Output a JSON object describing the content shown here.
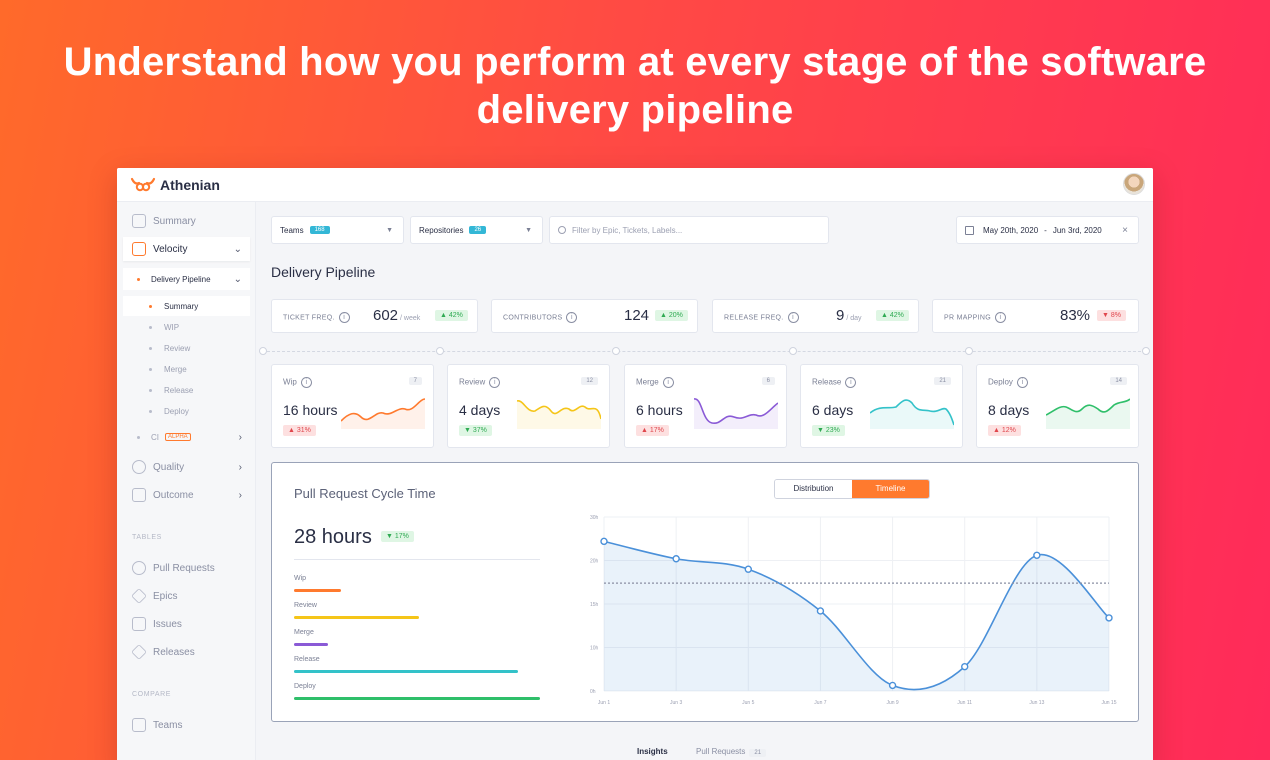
{
  "headline": "Understand how you perform at every stage of the software delivery pipeline",
  "app": {
    "name": "Athenian"
  },
  "sidebar": {
    "summary": "Summary",
    "velocity": "Velocity",
    "delivery_pipeline": "Delivery Pipeline",
    "pipeline_items": [
      "Summary",
      "WIP",
      "Review",
      "Merge",
      "Release",
      "Deploy"
    ],
    "ci": "CI",
    "ci_badge": "ALPHA",
    "quality": "Quality",
    "outcome": "Outcome",
    "tables_heading": "TABLES",
    "tables": [
      "Pull Requests",
      "Epics",
      "Issues",
      "Releases"
    ],
    "compare_heading": "COMPARE",
    "compare": [
      "Teams"
    ]
  },
  "filters": {
    "teams_label": "Teams",
    "teams_count": "168",
    "repos_label": "Repositories",
    "repos_count": "26",
    "search_placeholder": "Filter by Epic, Tickets, Labels...",
    "date_from": "May 20th, 2020",
    "date_sep": "-",
    "date_to": "Jun 3rd, 2020",
    "date_clear": "×"
  },
  "page_title": "Delivery Pipeline",
  "kpis": [
    {
      "label": "TICKET FREQ.",
      "value": "602",
      "unit": "/ week",
      "delta": "▲ 42%",
      "trend": "up"
    },
    {
      "label": "CONTRIBUTORS",
      "value": "124",
      "unit": "",
      "delta": "▲ 20%",
      "trend": "up"
    },
    {
      "label": "RELEASE FREQ.",
      "value": "9",
      "unit": "/ day",
      "delta": "▲ 42%",
      "trend": "up"
    },
    {
      "label": "PR MAPPING",
      "value": "83%",
      "unit": "",
      "delta": "▼ 8%",
      "trend": "down"
    }
  ],
  "stages": [
    {
      "label": "Wip",
      "count": "7",
      "value": "16 hours",
      "delta": "▲ 31%",
      "trend": "down",
      "color": "#ff7a2e"
    },
    {
      "label": "Review",
      "count": "12",
      "value": "4 days",
      "delta": "▼ 37%",
      "trend": "up",
      "color": "#f5c518"
    },
    {
      "label": "Merge",
      "count": "6",
      "value": "6 hours",
      "delta": "▲ 17%",
      "trend": "down",
      "color": "#8a5ad6"
    },
    {
      "label": "Release",
      "count": "21",
      "value": "6 days",
      "delta": "▼ 23%",
      "trend": "up",
      "color": "#33c2c9"
    },
    {
      "label": "Deploy",
      "count": "14",
      "value": "8 days",
      "delta": "▲ 12%",
      "trend": "down",
      "color": "#2fbf6a"
    }
  ],
  "pr_panel": {
    "title": "Pull Request Cycle Time",
    "toggle_distribution": "Distribution",
    "toggle_timeline": "Timeline",
    "value": "28 hours",
    "delta": "▼ 17%",
    "breakdown": [
      {
        "label": "Wip",
        "share": 0.19,
        "color": "#ff7a2e"
      },
      {
        "label": "Review",
        "share": 0.51,
        "color": "#f5c518"
      },
      {
        "label": "Merge",
        "share": 0.14,
        "color": "#8a5ad6"
      },
      {
        "label": "Release",
        "share": 0.91,
        "color": "#33c2c9"
      },
      {
        "label": "Deploy",
        "share": 1.0,
        "color": "#2fbf6a"
      }
    ]
  },
  "chart_data": {
    "type": "area",
    "x": [
      "Jun 1",
      "Jun 3",
      "Jun 5",
      "Jun 7",
      "Jun 9",
      "Jun 11",
      "Jun 13",
      "Jun 15"
    ],
    "series": [
      {
        "values": [
          21.5,
          19,
          17.5,
          11.5,
          0.8,
          3.5,
          19.5,
          10.5
        ]
      }
    ],
    "average": 15.5,
    "yticks": [
      "0h",
      "10h",
      "15h",
      "20h",
      "30h"
    ],
    "ylim": [
      0,
      25
    ],
    "grid": true,
    "color": "#4a90d9"
  },
  "bottom_tabs": {
    "insights": "Insights",
    "pull_requests": "Pull Requests",
    "pull_requests_count": "21"
  }
}
